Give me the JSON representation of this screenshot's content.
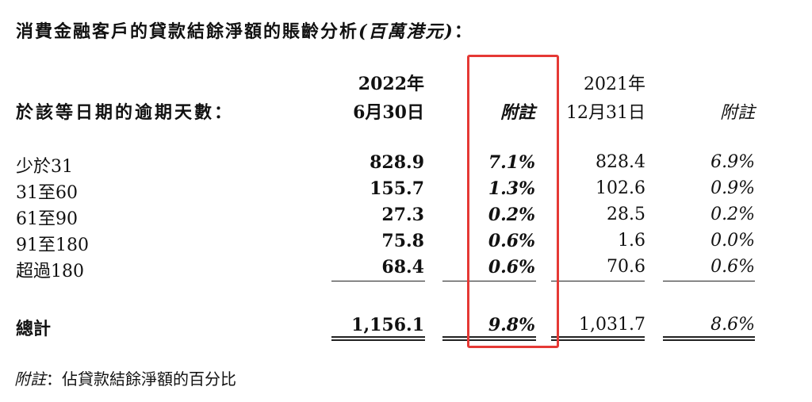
{
  "title": {
    "main": "消費金融客戶的貸款結餘淨額的賬齡分析",
    "unit": "(百萬港元)",
    "suffix": "："
  },
  "header": {
    "row_label": "於該等日期的逾期天數：",
    "col_2022_year": "2022年",
    "col_2022_date": "6月30日",
    "col_note": "附註",
    "col_2021_year": "2021年",
    "col_2021_date": "12月31日",
    "col_note2": "附註"
  },
  "rows": [
    {
      "label": "少於31",
      "v2022": "828.9",
      "p2022": "7.1%",
      "v2021": "828.4",
      "p2021": "6.9%"
    },
    {
      "label": "31至60",
      "v2022": "155.7",
      "p2022": "1.3%",
      "v2021": "102.6",
      "p2021": "0.9%"
    },
    {
      "label": "61至90",
      "v2022": "27.3",
      "p2022": "0.2%",
      "v2021": "28.5",
      "p2021": "0.2%"
    },
    {
      "label": "91至180",
      "v2022": "75.8",
      "p2022": "0.6%",
      "v2021": "1.6",
      "p2021": "0.0%"
    },
    {
      "label": "超過180",
      "v2022": "68.4",
      "p2022": "0.6%",
      "v2021": "70.6",
      "p2021": "0.6%"
    }
  ],
  "total": {
    "label": "總計",
    "v2022": "1,156.1",
    "p2022": "9.8%",
    "v2021": "1,031.7",
    "p2021": "8.6%"
  },
  "footnote": {
    "prefix": "附註",
    "text": "：佔貸款結餘淨額的百分比"
  },
  "highlight_color": "#e53935"
}
